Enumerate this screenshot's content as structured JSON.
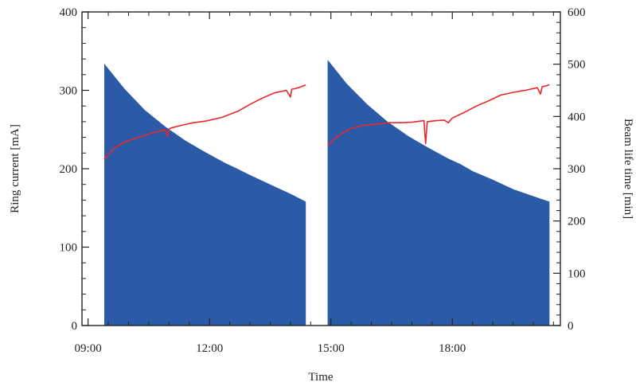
{
  "chart_data": {
    "type": "area",
    "xlabel": "Time",
    "ylabel_left": "Ring current [mA]",
    "ylabel_right": "Beam life time [min]",
    "x_unit": "hours",
    "xlim": [
      8.85,
      20.67
    ],
    "ylim_left": [
      0,
      400
    ],
    "ylim_right": [
      0,
      600
    ],
    "x_ticks": [
      {
        "value": 9,
        "label": "09:00"
      },
      {
        "value": 12,
        "label": "12:00"
      },
      {
        "value": 15,
        "label": "15:00"
      },
      {
        "value": 18,
        "label": "18:00"
      }
    ],
    "y_ticks_left": [
      0,
      100,
      200,
      300,
      400
    ],
    "y_ticks_right": [
      0,
      100,
      200,
      300,
      400,
      500,
      600
    ],
    "grid": false,
    "legend": "none",
    "colors": {
      "ring_current": "#2b5aa6",
      "beam_life_time": "#e8282d"
    },
    "series": [
      {
        "axis": "left",
        "style": "filled-area",
        "segments": [
          {
            "x": [
              9.4,
              9.9,
              10.4,
              10.9,
              11.4,
              11.9,
              12.4,
              12.65,
              13.0,
              13.5,
              14.0,
              14.38
            ],
            "y": [
              334,
              302,
              275,
              254,
              236,
              221,
              207,
              201,
              192,
              180,
              168,
              158
            ]
          },
          {
            "x": [
              14.92,
              15.4,
              15.9,
              16.4,
              16.9,
              17.4,
              17.9,
              18.2,
              18.5,
              19.0,
              19.5,
              20.0,
              20.4
            ],
            "y": [
              339,
              308,
              282,
              260,
              242,
              227,
              213,
              206,
              197,
              186,
              174,
              165,
              158
            ]
          }
        ]
      },
      {
        "axis": "right",
        "style": "line",
        "segments": [
          {
            "x": [
              9.4,
              9.6,
              9.8,
              10.0,
              10.3,
              10.6,
              10.9,
              10.97,
              11.0,
              11.05,
              11.3,
              11.6,
              11.9,
              12.3,
              12.7,
              13.0,
              13.3,
              13.6,
              13.9,
              14.0,
              14.03,
              14.1,
              14.2,
              14.3,
              14.38
            ],
            "y": [
              318,
              336,
              347,
              354,
              361,
              369,
              375,
              362,
              376,
              378,
              383,
              388,
              391,
              398,
              410,
              423,
              435,
              445,
              450,
              437,
              452,
              453,
              455,
              458,
              460
            ]
          },
          {
            "x": [
              14.92,
              15.1,
              15.3,
              15.5,
              15.8,
              16.1,
              16.4,
              16.7,
              17.0,
              17.3,
              17.34,
              17.38,
              17.6,
              17.8,
              17.9,
              18.0,
              18.3,
              18.6,
              18.9,
              19.2,
              19.5,
              19.8,
              20.1,
              20.18,
              20.22,
              20.3,
              20.4
            ],
            "y": [
              344,
              358,
              369,
              377,
              383,
              385,
              388,
              388,
              389,
              392,
              348,
              390,
              392,
              393,
              388,
              397,
              408,
              420,
              430,
              441,
              446,
              450,
              455,
              443,
              457,
              458,
              461
            ]
          }
        ]
      }
    ]
  }
}
